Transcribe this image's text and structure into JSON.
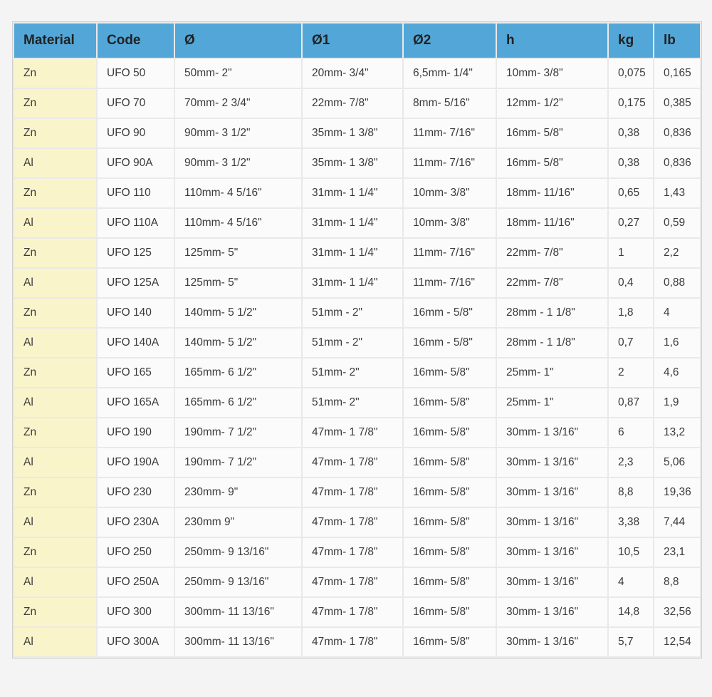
{
  "colors": {
    "header_bg": "#52a7d8",
    "header_text": "#222222",
    "material_cell_bg": "#faf4cb",
    "cell_bg": "#fbfbfb",
    "cell_text": "#3a3a3a",
    "page_bg": "#f4f4f4"
  },
  "table": {
    "columns": [
      {
        "key": "material",
        "label": "Material"
      },
      {
        "key": "code",
        "label": "Code"
      },
      {
        "key": "d",
        "label": "Ø"
      },
      {
        "key": "d1",
        "label": "Ø1"
      },
      {
        "key": "d2",
        "label": "Ø2"
      },
      {
        "key": "h",
        "label": "h"
      },
      {
        "key": "kg",
        "label": "kg"
      },
      {
        "key": "lb",
        "label": "lb"
      }
    ],
    "rows": [
      {
        "material": "Zn",
        "code": "UFO 50",
        "d": "50mm- 2\"",
        "d1": "20mm- 3/4\"",
        "d2": "6,5mm- 1/4\"",
        "h": "10mm- 3/8\"",
        "kg": "0,075",
        "lb": "0,165"
      },
      {
        "material": "Zn",
        "code": "UFO 70",
        "d": "70mm- 2 3/4\"",
        "d1": "22mm- 7/8\"",
        "d2": "8mm- 5/16\"",
        "h": "12mm- 1/2\"",
        "kg": "0,175",
        "lb": "0,385"
      },
      {
        "material": "Zn",
        "code": "UFO 90",
        "d": "90mm- 3 1/2\"",
        "d1": "35mm- 1 3/8\"",
        "d2": "11mm- 7/16\"",
        "h": "16mm- 5/8\"",
        "kg": "0,38",
        "lb": "0,836"
      },
      {
        "material": "Al",
        "code": "UFO 90A",
        "d": "90mm- 3 1/2\"",
        "d1": "35mm- 1 3/8\"",
        "d2": "11mm- 7/16\"",
        "h": "16mm- 5/8\"",
        "kg": "0,38",
        "lb": "0,836"
      },
      {
        "material": "Zn",
        "code": "UFO 110",
        "d": "110mm- 4 5/16\"",
        "d1": "31mm- 1 1/4\"",
        "d2": "10mm- 3/8\"",
        "h": "18mm- 11/16\"",
        "kg": "0,65",
        "lb": "1,43"
      },
      {
        "material": "Al",
        "code": "UFO 110A",
        "d": "110mm- 4 5/16\"",
        "d1": "31mm- 1 1/4\"",
        "d2": "10mm- 3/8\"",
        "h": "18mm- 11/16\"",
        "kg": "0,27",
        "lb": "0,59"
      },
      {
        "material": "Zn",
        "code": "UFO 125",
        "d": "125mm- 5\"",
        "d1": "31mm- 1 1/4\"",
        "d2": "11mm- 7/16\"",
        "h": "22mm- 7/8\"",
        "kg": "1",
        "lb": "2,2"
      },
      {
        "material": "Al",
        "code": "UFO 125A",
        "d": "125mm- 5\"",
        "d1": "31mm- 1 1/4\"",
        "d2": "11mm- 7/16\"",
        "h": "22mm- 7/8\"",
        "kg": "0,4",
        "lb": "0,88"
      },
      {
        "material": "Zn",
        "code": "UFO 140",
        "d": "140mm- 5 1/2\"",
        "d1": "51mm - 2\"",
        "d2": "16mm - 5/8\"",
        "h": "28mm - 1 1/8\"",
        "kg": "1,8",
        "lb": "4"
      },
      {
        "material": "Al",
        "code": "UFO 140A",
        "d": "140mm- 5 1/2\"",
        "d1": "51mm - 2\"",
        "d2": "16mm - 5/8\"",
        "h": "28mm - 1 1/8\"",
        "kg": "0,7",
        "lb": "1,6"
      },
      {
        "material": "Zn",
        "code": "UFO 165",
        "d": "165mm- 6 1/2\"",
        "d1": "51mm- 2\"",
        "d2": "16mm- 5/8\"",
        "h": "25mm- 1\"",
        "kg": "2",
        "lb": "4,6"
      },
      {
        "material": "Al",
        "code": "UFO 165A",
        "d": "165mm- 6 1/2\"",
        "d1": "51mm- 2\"",
        "d2": "16mm- 5/8\"",
        "h": "25mm- 1\"",
        "kg": "0,87",
        "lb": "1,9"
      },
      {
        "material": "Zn",
        "code": "UFO 190",
        "d": "190mm- 7 1/2\"",
        "d1": "47mm- 1 7/8\"",
        "d2": "16mm- 5/8\"",
        "h": "30mm- 1 3/16\"",
        "kg": "6",
        "lb": "13,2"
      },
      {
        "material": "Al",
        "code": "UFO 190A",
        "d": "190mm- 7 1/2\"",
        "d1": "47mm- 1 7/8\"",
        "d2": "16mm- 5/8\"",
        "h": "30mm- 1 3/16\"",
        "kg": "2,3",
        "lb": "5,06"
      },
      {
        "material": "Zn",
        "code": "UFO 230",
        "d": "230mm- 9\"",
        "d1": "47mm- 1 7/8\"",
        "d2": "16mm- 5/8\"",
        "h": "30mm- 1 3/16\"",
        "kg": "8,8",
        "lb": "19,36"
      },
      {
        "material": "Al",
        "code": "UFO 230A",
        "d": "230mm 9\"",
        "d1": "47mm- 1 7/8\"",
        "d2": "16mm- 5/8\"",
        "h": "30mm- 1 3/16\"",
        "kg": "3,38",
        "lb": "7,44"
      },
      {
        "material": "Zn",
        "code": "UFO 250",
        "d": "250mm- 9 13/16\"",
        "d1": "47mm- 1 7/8\"",
        "d2": "16mm- 5/8\"",
        "h": "30mm- 1 3/16\"",
        "kg": "10,5",
        "lb": "23,1"
      },
      {
        "material": "Al",
        "code": "UFO 250A",
        "d": "250mm- 9 13/16\"",
        "d1": "47mm- 1 7/8\"",
        "d2": "16mm- 5/8\"",
        "h": "30mm- 1 3/16\"",
        "kg": "4",
        "lb": "8,8"
      },
      {
        "material": "Zn",
        "code": "UFO 300",
        "d": "300mm- 11 13/16\"",
        "d1": "47mm- 1 7/8\"",
        "d2": "16mm- 5/8\"",
        "h": "30mm- 1 3/16\"",
        "kg": "14,8",
        "lb": "32,56"
      },
      {
        "material": "Al",
        "code": "UFO 300A",
        "d": "300mm- 11 13/16\"",
        "d1": "47mm- 1 7/8\"",
        "d2": "16mm- 5/8\"",
        "h": "30mm- 1 3/16\"",
        "kg": "5,7",
        "lb": "12,54"
      }
    ]
  }
}
